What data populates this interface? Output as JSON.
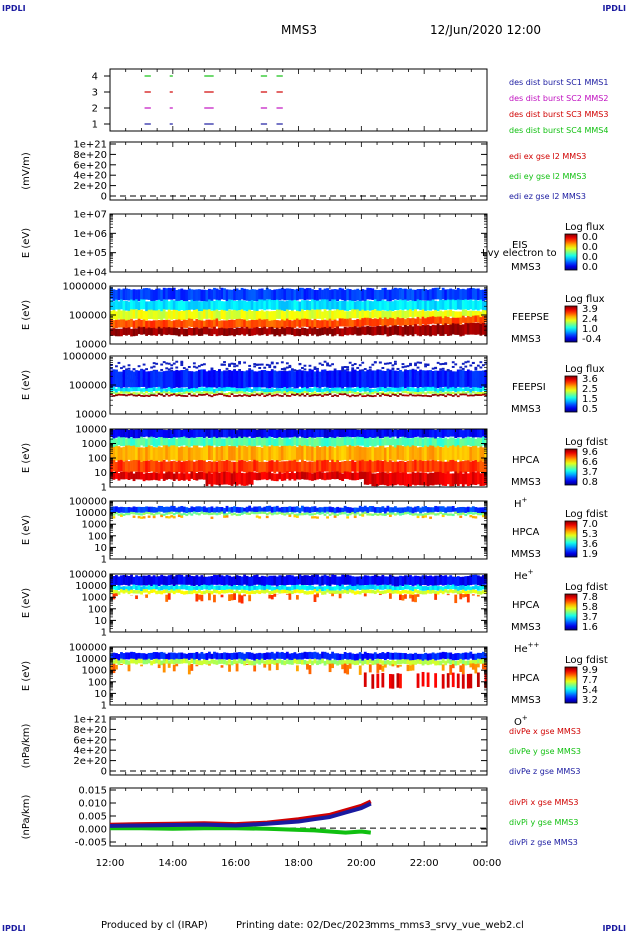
{
  "header": {
    "corner_label": "IPDLI",
    "spacecraft": "MMS3",
    "datetime": "12/Jun/2020 12:00"
  },
  "footer": {
    "produced_by": "Produced by cl (IRAP)",
    "printing_date": "Printing date: 02/Dec/2023",
    "filename": "mms_mms3_srvy_vue_web2.cl"
  },
  "chart_data": {
    "type": "multi-panel time series / spectrogram",
    "x_ticks": [
      "12:00",
      "14:00",
      "16:00",
      "18:00",
      "20:00",
      "22:00",
      "00:00"
    ],
    "panels": [
      {
        "id": "burst",
        "type": "timeline",
        "yticks": [
          "4",
          "3",
          "2",
          "1"
        ],
        "legend": [
          {
            "text": "des dist burst SC1 MMS1",
            "color": "#1a1aa0"
          },
          {
            "text": "des dist burst SC2 MMS2",
            "color": "#c010c0"
          },
          {
            "text": "des dist burst SC3 MMS3",
            "color": "#d00000"
          },
          {
            "text": "des dist burst SC4 MMS4",
            "color": "#10c010"
          }
        ],
        "segments_hours": [
          [
            13.1,
            13.3
          ],
          [
            13.9,
            14.0
          ],
          [
            15.0,
            15.3
          ],
          [
            16.8,
            17.0
          ],
          [
            17.3,
            17.5
          ]
        ]
      },
      {
        "id": "edi",
        "type": "line",
        "ylabel": "(mV/m)",
        "yticks": [
          "1e+21",
          "8e+20",
          "6e+20",
          "4e+20",
          "2e+20",
          "0"
        ],
        "legend": [
          {
            "text": "edi ex gse l2 MMS3",
            "color": "#d00000"
          },
          {
            "text": "edi ey gse l2 MMS3",
            "color": "#10c010"
          },
          {
            "text": "edi ez gse l2 MMS3",
            "color": "#1a1aa0"
          }
        ]
      },
      {
        "id": "eis",
        "type": "spectrogram",
        "ylabel": "E (eV)",
        "yticks": [
          "1e+07",
          "1e+06",
          "1e+05",
          "1e+04"
        ],
        "labels": [
          "EIS",
          "MMS3"
        ],
        "overlay": "Lvy electron to",
        "cbar_title": "Log flux",
        "cbar_ticks": [
          "0.0",
          "0.0",
          "0.0",
          "0.0"
        ]
      },
      {
        "id": "feepse",
        "type": "spectrogram",
        "ylabel": "E (eV)",
        "yticks": [
          "1000000",
          "100000",
          "10000"
        ],
        "labels": [
          "FEEPSE",
          "MMS3"
        ],
        "cbar_title": "Log flux",
        "cbar_ticks": [
          "3.9",
          "2.4",
          "1.0",
          "-0.4"
        ]
      },
      {
        "id": "feepsi",
        "type": "spectrogram",
        "ylabel": "E (eV)",
        "yticks": [
          "1000000",
          "100000",
          "10000"
        ],
        "labels": [
          "FEEPSI",
          "MMS3"
        ],
        "cbar_title": "Log flux",
        "cbar_ticks": [
          "3.6",
          "2.5",
          "1.5",
          "0.5"
        ]
      },
      {
        "id": "hpca-h",
        "type": "spectrogram",
        "ylabel": "E (eV)",
        "yticks": [
          "10000",
          "1000",
          "100",
          "10",
          "1"
        ],
        "labels": [
          "HPCA",
          "MMS3",
          "H+"
        ],
        "cbar_title": "Log fdist",
        "cbar_ticks": [
          "9.6",
          "6.6",
          "3.7",
          "0.8"
        ]
      },
      {
        "id": "hpca-he",
        "type": "spectrogram",
        "ylabel": "E (eV)",
        "yticks": [
          "100000",
          "10000",
          "1000",
          "100",
          "10",
          "1"
        ],
        "labels": [
          "HPCA",
          "MMS3",
          "He+"
        ],
        "cbar_title": "Log fdist",
        "cbar_ticks": [
          "7.0",
          "5.3",
          "3.6",
          "1.9"
        ]
      },
      {
        "id": "hpca-he2",
        "type": "spectrogram",
        "ylabel": "E (eV)",
        "yticks": [
          "100000",
          "10000",
          "1000",
          "100",
          "10",
          "1"
        ],
        "labels": [
          "HPCA",
          "MMS3",
          "He++"
        ],
        "cbar_title": "Log fdist",
        "cbar_ticks": [
          "7.8",
          "5.8",
          "3.7",
          "1.6"
        ]
      },
      {
        "id": "hpca-o",
        "type": "spectrogram",
        "ylabel": "E (eV)",
        "yticks": [
          "100000",
          "10000",
          "1000",
          "100",
          "10",
          "1"
        ],
        "labels": [
          "HPCA",
          "MMS3",
          "O+"
        ],
        "cbar_title": "Log fdist",
        "cbar_ticks": [
          "9.9",
          "7.7",
          "5.4",
          "3.2"
        ]
      },
      {
        "id": "divpe",
        "type": "line",
        "ylabel": "(nPa/km)",
        "yticks": [
          "1e+21",
          "8e+20",
          "6e+20",
          "4e+20",
          "2e+20",
          "0"
        ],
        "legend": [
          {
            "text": "divPe x gse MMS3",
            "color": "#d00000"
          },
          {
            "text": "divPe y gse MMS3",
            "color": "#10c010"
          },
          {
            "text": "divPe z gse MMS3",
            "color": "#1a1aa0"
          }
        ]
      },
      {
        "id": "divpi",
        "type": "line",
        "ylabel": "(nPa/km)",
        "yticks": [
          "0.015",
          "0.010",
          "0.005",
          "0.000",
          "-0.005"
        ],
        "ylim": [
          -0.008,
          0.018
        ],
        "legend": [
          {
            "text": "divPi x gse MMS3",
            "color": "#d00000"
          },
          {
            "text": "divPi y gse MMS3",
            "color": "#10c010"
          },
          {
            "text": "divPi z gse MMS3",
            "color": "#1a1aa0"
          }
        ],
        "series": [
          {
            "name": "divPi x gse MMS3",
            "color": "#d00000",
            "x": [
              12,
              13,
              14,
              15,
              16,
              17,
              18,
              18.5,
              19,
              19.5,
              20,
              20.3
            ],
            "y": [
              0.0015,
              0.0018,
              0.002,
              0.0022,
              0.0018,
              0.0025,
              0.004,
              0.005,
              0.006,
              0.008,
              0.01,
              0.012
            ]
          },
          {
            "name": "divPi y gse MMS3",
            "color": "#10c010",
            "x": [
              12,
              13,
              14,
              15,
              16,
              17,
              18,
              18.5,
              19,
              19.5,
              20,
              20.3
            ],
            "y": [
              0.0,
              0.0,
              -0.0003,
              0.0,
              0.0,
              -0.0003,
              -0.0008,
              -0.001,
              -0.0015,
              -0.002,
              -0.0015,
              -0.002
            ]
          },
          {
            "name": "divPi z gse MMS3",
            "color": "#1a1aa0",
            "x": [
              12,
              13,
              14,
              15,
              16,
              17,
              18,
              18.5,
              19,
              19.5,
              20,
              20.3
            ],
            "y": [
              0.001,
              0.0012,
              0.0014,
              0.0016,
              0.0012,
              0.002,
              0.003,
              0.004,
              0.005,
              0.007,
              0.009,
              0.011
            ]
          }
        ]
      }
    ]
  }
}
